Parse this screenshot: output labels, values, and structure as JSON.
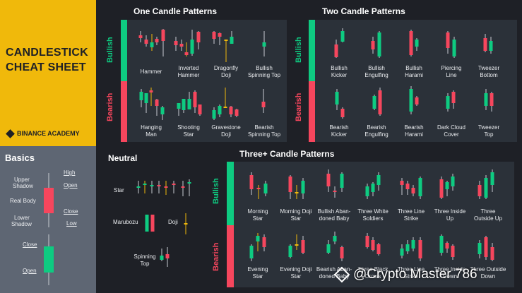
{
  "title_lines": [
    "CANDLESTICK",
    "CHEAT SHEET"
  ],
  "brand": "BINANCE ACADEMY",
  "colors": {
    "bullish": "#0ecb81",
    "bearish": "#f6465d",
    "accent": "#f0b90b",
    "wick": "#f0b90b",
    "panel": "#2b3139",
    "background": "#1e2026"
  },
  "basics": {
    "title": "Basics",
    "labels": {
      "high": "High",
      "upper_shadow_1": "Upper",
      "upper_shadow_2": "Shadow",
      "open_top": "Open",
      "real_body": "Real Body",
      "close_top": "Close",
      "lower_shadow_1": "Lower",
      "lower_shadow_2": "Shadow",
      "low": "Low",
      "close_bottom": "Close",
      "open_bottom": "Open"
    }
  },
  "sections": {
    "one": "One Candle Patterns",
    "two": "Two Candle Patterns",
    "neutral": "Neutral",
    "three": "Three+ Candle Patterns"
  },
  "side_labels": {
    "bullish": "Bullish",
    "bearish": "Bearish"
  },
  "one_candle": {
    "bullish": [
      [
        "Hammer"
      ],
      [
        "Inverted",
        "Hammer"
      ],
      [
        "Dragonfly",
        "Doji"
      ],
      [
        "Bullish",
        "Spinning Top"
      ]
    ],
    "bearish": [
      [
        "Hanging",
        "Man"
      ],
      [
        "Shooting",
        "Star"
      ],
      [
        "Gravestone",
        "Doji"
      ],
      [
        "Bearish",
        "Spinning Top"
      ]
    ]
  },
  "two_candle": {
    "bullish": [
      [
        "Bullish",
        "Kicker"
      ],
      [
        "Bullish",
        "Engulfing"
      ],
      [
        "Bullish",
        "Harami"
      ],
      [
        "Piercing",
        "Line"
      ],
      [
        "Tweezer",
        "Bottom"
      ]
    ],
    "bearish": [
      [
        "Bearish",
        "Kicker"
      ],
      [
        "Bearish",
        "Engulfing"
      ],
      [
        "Bearish",
        "Harami"
      ],
      [
        "Dark Cloud",
        "Cover"
      ],
      [
        "Tweezer",
        "Top"
      ]
    ]
  },
  "neutral": {
    "star": "Star",
    "marubozu": "Marubozu",
    "doji": "Doji",
    "spinning_top": [
      "Spinning",
      "Top"
    ]
  },
  "three_candle": {
    "bullish": [
      [
        "Morning",
        "Star"
      ],
      [
        "Morning Doji",
        "Star"
      ],
      [
        "Bullish Aban-",
        "doned Baby"
      ],
      [
        "Three White",
        "Soldiers"
      ],
      [
        "Three Line",
        "Strike"
      ],
      [
        "Three Inside",
        "Up"
      ],
      [
        "Three",
        "Outside Up"
      ]
    ],
    "bearish": [
      [
        "Evening",
        "Star"
      ],
      [
        "Evening Doji",
        "Star"
      ],
      [
        "Bearish Aban-",
        "doned Baby"
      ],
      [
        "Three Black",
        "Crows"
      ],
      [
        "Three Line",
        "Strike"
      ],
      [
        "Three Inside",
        "Down"
      ],
      [
        "Three Outside",
        "Down"
      ]
    ]
  },
  "watermark": "@Crypto Master 786"
}
